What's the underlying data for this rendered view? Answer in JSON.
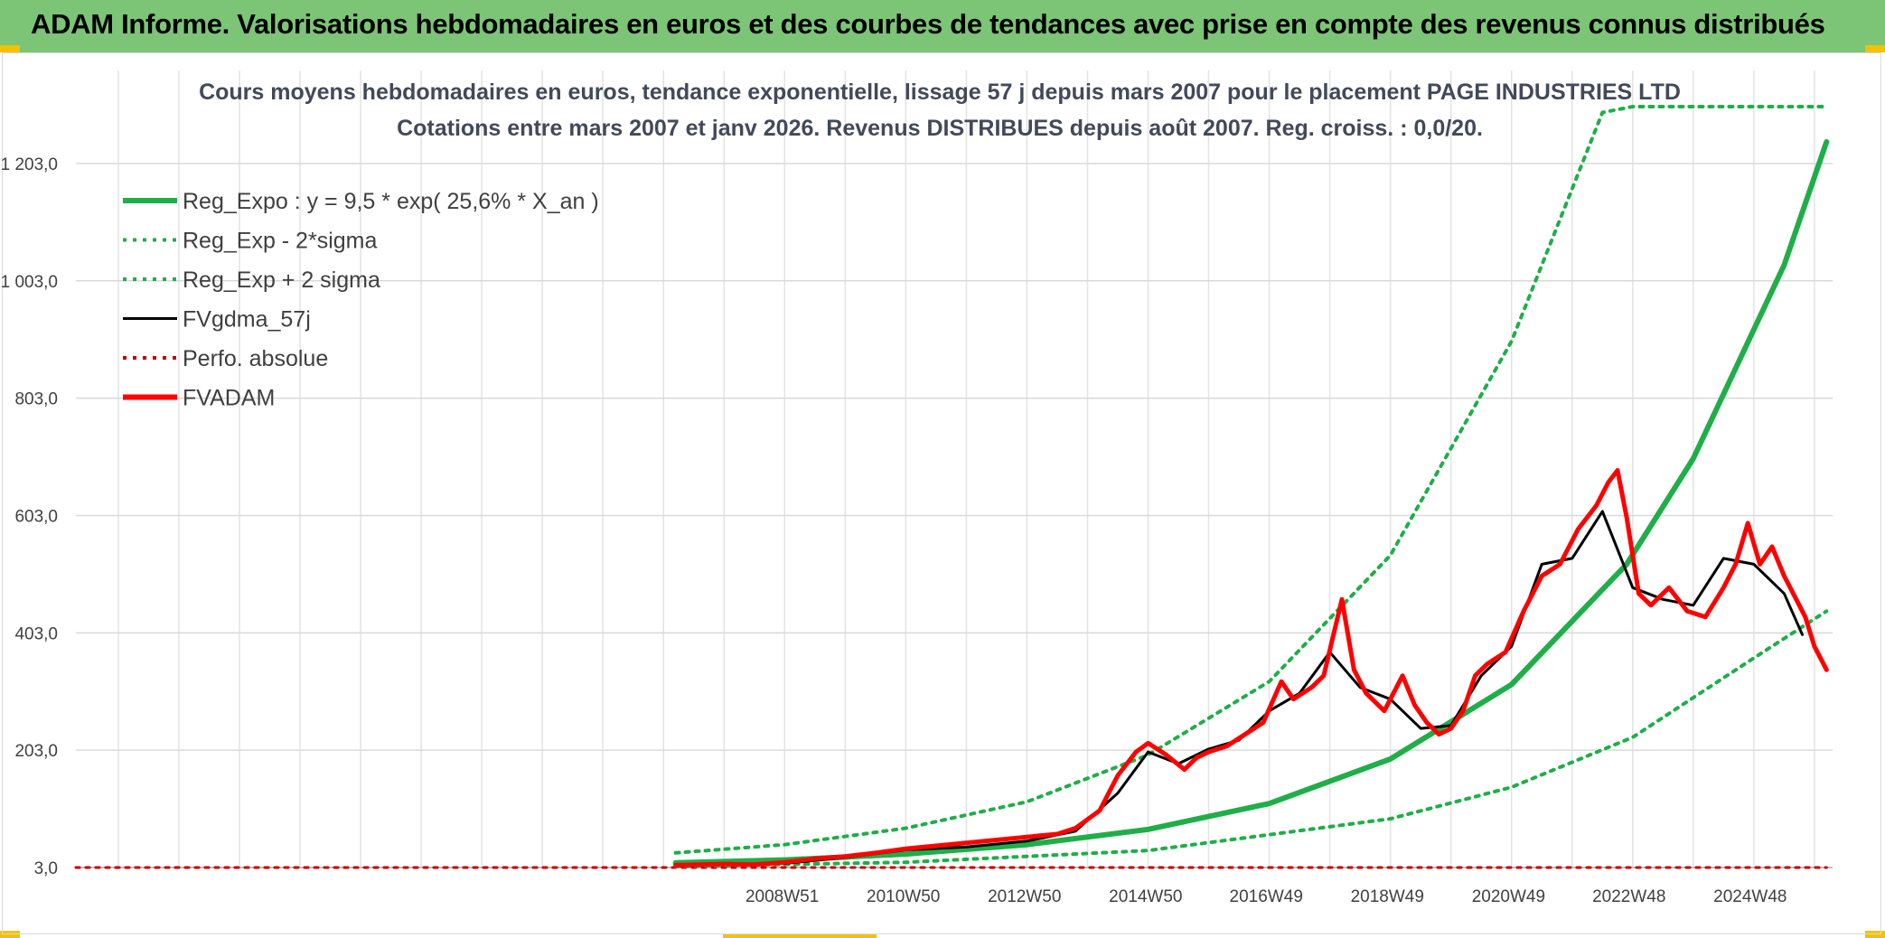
{
  "banner": {
    "title": "ADAM Informe. Valorisations hebdomadaires en euros et des courbes de tendances avec prise en compte des revenus connus distribués"
  },
  "colors": {
    "banner_bg": "#7cc576",
    "trend_green": "#1fae48",
    "price_red": "#ff0000",
    "smooth_black": "#000000",
    "abs_perf_darkred": "#a00000"
  },
  "chart_data": {
    "type": "line",
    "title_lines": [
      "Cours moyens hebdomadaires en euros, tendance exponentielle, lissage 57 j depuis mars 2007 pour le placement PAGE INDUSTRIES LTD",
      "Cotations entre mars 2007 et janv 2026. Revenus DISTRIBUES depuis août 2007. Reg. croiss. : 0,0/20."
    ],
    "x_tick_labels": [
      "2008W51",
      "2010W50",
      "2012W50",
      "2014W50",
      "2016W49",
      "2018W49",
      "2020W49",
      "2022W48",
      "2024W48"
    ],
    "x_tick_years": [
      2008.96,
      2010.96,
      2012.96,
      2014.96,
      2016.95,
      2018.95,
      2020.95,
      2022.94,
      2024.94
    ],
    "xlim": [
      1997.3,
      2026.3
    ],
    "y_tick_labels": [
      "3,0",
      "203,0",
      "403,0",
      "603,0",
      "803,0",
      "1 003,0",
      "1 203,0"
    ],
    "y_tick_values": [
      3,
      203,
      403,
      603,
      803,
      1003,
      1203
    ],
    "ylim": [
      3,
      1300
    ],
    "grid": true,
    "legend": {
      "position": "top-left",
      "entries": [
        {
          "label": "Reg_Expo : y = 9,5 * exp( 25,6% *  X_an )",
          "style": "solid-thick",
          "color": "#1fae48"
        },
        {
          "label": "Reg_Exp - 2*sigma",
          "style": "dotted",
          "color": "#1fae48"
        },
        {
          "label": "Reg_Exp + 2 sigma",
          "style": "dotted",
          "color": "#1fae48"
        },
        {
          "label": "FVgdma_57j",
          "style": "solid",
          "color": "#000000"
        },
        {
          "label": "Perfo. absolue",
          "style": "dotted",
          "color": "#c00000"
        },
        {
          "label": "FVADAM",
          "style": "solid-thick",
          "color": "#ff0000"
        }
      ]
    },
    "series": [
      {
        "name": "Reg_Expo : y = 9,5 * exp( 25,6% *  X_an )",
        "x": [
          2007.2,
          2009,
          2011,
          2013,
          2015,
          2017,
          2019,
          2021,
          2022.9,
          2024,
          2025.5,
          2026.2
        ],
        "values": [
          11,
          16,
          26,
          42,
          68,
          112,
          188,
          315,
          520,
          700,
          1030,
          1240
        ]
      },
      {
        "name": "Reg_Exp - 2*sigma",
        "x": [
          2007.2,
          2011,
          2015,
          2019,
          2021,
          2023,
          2025,
          2026.2
        ],
        "values": [
          5,
          12,
          32,
          86,
          140,
          225,
          360,
          440
        ]
      },
      {
        "name": "Reg_Exp + 2 sigma",
        "x": [
          2007.2,
          2009,
          2011,
          2013,
          2015,
          2017,
          2019,
          2021,
          2022,
          2022.5,
          2023.0,
          2025.3,
          2026.2
        ],
        "values": [
          28,
          42,
          70,
          115,
          195,
          320,
          535,
          900,
          1160,
          1290,
          1300,
          1300,
          1300
        ]
      },
      {
        "name": "FVgdma_57j",
        "x": [
          2007.2,
          2008,
          2009,
          2010,
          2011,
          2012,
          2013,
          2013.8,
          2014.5,
          2015,
          2015.5,
          2016,
          2016.5,
          2017,
          2017.5,
          2018,
          2018.5,
          2019,
          2019.5,
          2020,
          2020.5,
          2021,
          2021.5,
          2022,
          2022.5,
          2023,
          2023.5,
          2024,
          2024.5,
          2025,
          2025.5,
          2025.8
        ],
        "values": [
          6,
          8,
          10,
          20,
          33,
          38,
          48,
          65,
          130,
          200,
          180,
          205,
          220,
          270,
          300,
          370,
          310,
          290,
          240,
          245,
          330,
          380,
          520,
          530,
          610,
          480,
          460,
          450,
          530,
          520,
          470,
          400
        ]
      },
      {
        "name": "Perfo. absolue",
        "x": [
          1997.3,
          2026.2
        ],
        "values": [
          3,
          3
        ]
      },
      {
        "name": "FVADAM",
        "x": [
          2007.2,
          2008,
          2008.5,
          2009,
          2009.5,
          2010,
          2010.5,
          2011,
          2011.5,
          2012,
          2012.5,
          2013,
          2013.5,
          2013.8,
          2014.2,
          2014.5,
          2014.8,
          2015,
          2015.3,
          2015.6,
          2015.8,
          2016,
          2016.3,
          2016.6,
          2016.9,
          2017.2,
          2017.4,
          2017.7,
          2017.9,
          2018.2,
          2018.4,
          2018.6,
          2018.9,
          2019.2,
          2019.4,
          2019.6,
          2019.8,
          2020.0,
          2020.2,
          2020.4,
          2020.6,
          2020.9,
          2021.2,
          2021.5,
          2021.8,
          2022.1,
          2022.4,
          2022.6,
          2022.75,
          2022.9,
          2023.1,
          2023.3,
          2023.6,
          2023.9,
          2024.2,
          2024.5,
          2024.7,
          2024.9,
          2025.1,
          2025.3,
          2025.5,
          2025.7,
          2025.85,
          2026.0,
          2026.2
        ],
        "values": [
          7,
          9,
          8,
          12,
          18,
          22,
          28,
          35,
          40,
          45,
          50,
          55,
          60,
          70,
          100,
          160,
          200,
          215,
          195,
          170,
          190,
          200,
          210,
          230,
          250,
          320,
          290,
          310,
          330,
          460,
          340,
          300,
          270,
          330,
          280,
          250,
          230,
          240,
          270,
          330,
          350,
          370,
          440,
          500,
          520,
          580,
          620,
          660,
          680,
          600,
          470,
          450,
          480,
          440,
          430,
          480,
          520,
          590,
          520,
          550,
          500,
          460,
          430,
          380,
          340
        ]
      }
    ]
  }
}
